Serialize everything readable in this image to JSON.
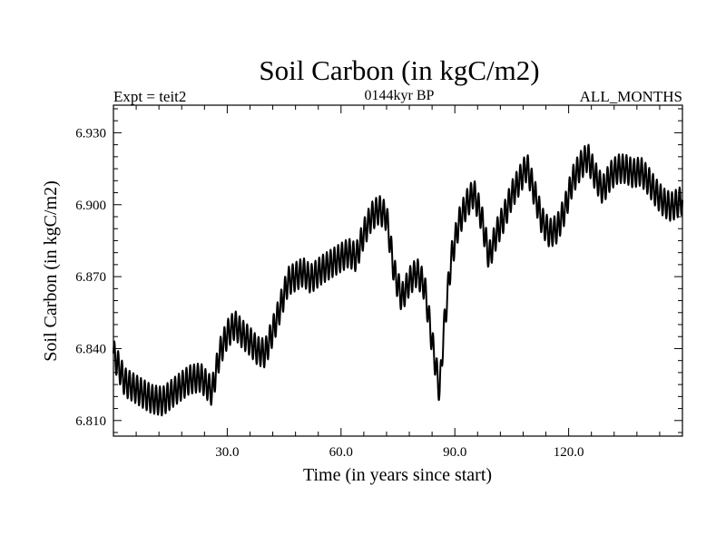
{
  "chart_data": {
    "type": "line",
    "title": "Soil Carbon (in kgC/m2)",
    "subtitle": "0144kyr BP",
    "left_label": "Expt = teit2",
    "right_label": "ALL_MONTHS",
    "xlabel": "Time (in years since start)",
    "ylabel": "Soil Carbon (in kgC/m2)",
    "xlim": [
      0,
      150
    ],
    "ylim": [
      6.8035,
      6.9415
    ],
    "xticks": [
      30,
      60,
      90,
      120
    ],
    "xtick_labels": [
      "30.0",
      "60.0",
      "90.0",
      "120.0"
    ],
    "yticks": [
      6.81,
      6.84,
      6.87,
      6.9,
      6.93
    ],
    "ytick_labels": [
      "6.810",
      "6.840",
      "6.870",
      "6.900",
      "6.930"
    ],
    "oscillation_amplitude": 0.006,
    "oscillation_period": 1,
    "series": [
      {
        "name": "Soil Carbon",
        "trend": {
          "x": [
            0,
            3,
            7,
            10,
            13,
            16,
            20,
            23,
            25,
            26,
            28,
            30,
            32,
            34,
            36,
            38,
            40,
            43,
            46,
            50,
            52,
            55,
            58,
            60,
            62,
            64,
            66,
            68,
            70,
            72,
            74,
            76,
            78,
            80,
            82,
            84,
            86,
            87,
            89,
            91,
            93,
            95,
            97,
            99,
            101,
            103,
            105,
            107,
            109,
            111,
            113,
            115,
            117,
            119,
            121,
            123,
            125,
            127,
            129,
            131,
            133,
            135,
            137,
            139,
            141,
            143,
            145,
            147,
            150
          ],
          "y": [
            6.838,
            6.826,
            6.822,
            6.819,
            6.818,
            6.822,
            6.827,
            6.828,
            6.824,
            6.822,
            6.838,
            6.846,
            6.85,
            6.846,
            6.843,
            6.839,
            6.838,
            6.852,
            6.868,
            6.872,
            6.869,
            6.873,
            6.876,
            6.878,
            6.88,
            6.878,
            6.888,
            6.895,
            6.898,
            6.895,
            6.872,
            6.861,
            6.868,
            6.872,
            6.866,
            6.843,
            6.822,
            6.846,
            6.877,
            6.892,
            6.9,
            6.905,
            6.895,
            6.878,
            6.888,
            6.895,
            6.904,
            6.91,
            6.916,
            6.905,
            6.893,
            6.888,
            6.89,
            6.898,
            6.91,
            6.916,
            6.92,
            6.912,
            6.906,
            6.912,
            6.915,
            6.915,
            6.913,
            6.914,
            6.91,
            6.905,
            6.901,
            6.899,
            6.902
          ]
        }
      }
    ]
  }
}
